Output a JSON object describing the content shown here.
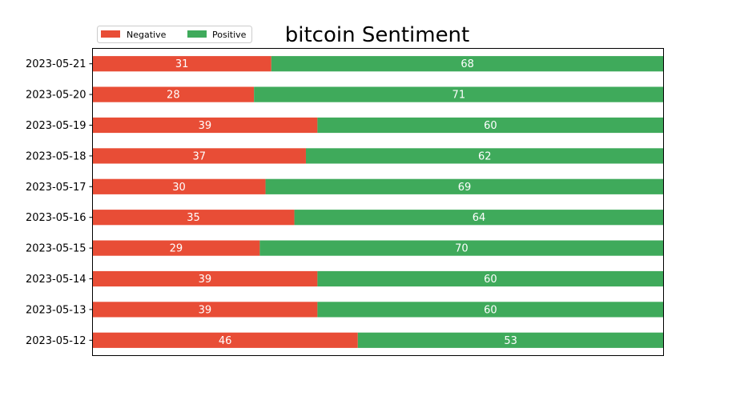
{
  "chart_data": {
    "type": "bar",
    "orientation": "horizontal",
    "stacked": true,
    "title": "bitcoin Sentiment",
    "xlabel": "",
    "ylabel": "",
    "categories": [
      "2023-05-12",
      "2023-05-13",
      "2023-05-14",
      "2023-05-15",
      "2023-05-16",
      "2023-05-17",
      "2023-05-18",
      "2023-05-19",
      "2023-05-20",
      "2023-05-21"
    ],
    "series": [
      {
        "name": "Negative",
        "color": "#e84d36",
        "values": [
          46,
          39,
          39,
          29,
          35,
          30,
          37,
          39,
          28,
          31
        ]
      },
      {
        "name": "Positive",
        "color": "#3faa5b",
        "values": [
          53,
          60,
          60,
          70,
          64,
          69,
          62,
          60,
          71,
          68
        ]
      }
    ],
    "xlim": [
      0,
      99
    ],
    "xticks_visible": false,
    "grid": false,
    "legend_position": "top-left"
  }
}
